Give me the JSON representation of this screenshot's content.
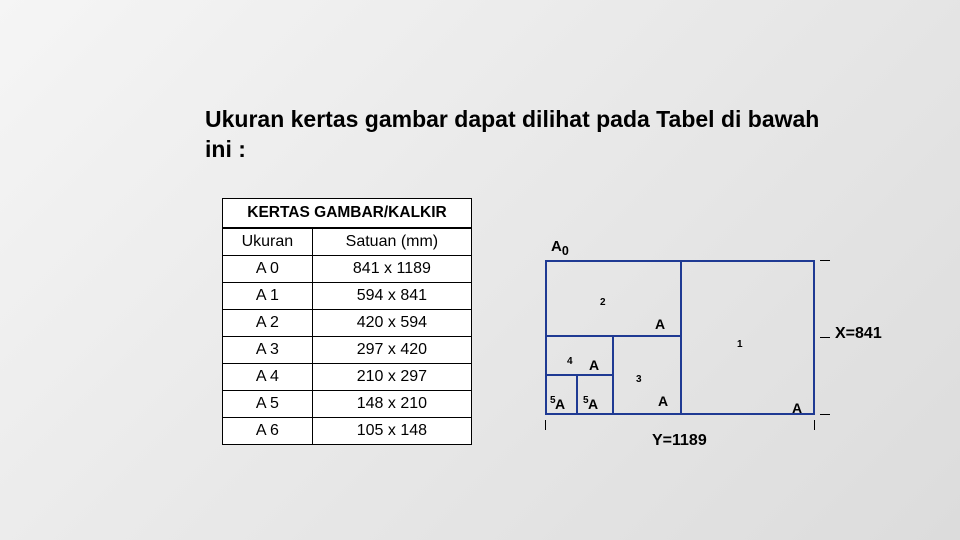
{
  "title": "Ukuran kertas gambar dapat dilihat pada Tabel di bawah ini :",
  "table": {
    "header": "KERTAS GAMBAR/KALKIR",
    "col1": "Ukuran",
    "col2": "Satuan  (mm)",
    "rows": [
      {
        "size": "A 0",
        "dim": "841 x 1189"
      },
      {
        "size": "A 1",
        "dim": "594 x 841"
      },
      {
        "size": "A 2",
        "dim": "420 x 594"
      },
      {
        "size": "A 3",
        "dim": "297 x 420"
      },
      {
        "size": "A 4",
        "dim": "210 x 297"
      },
      {
        "size": "A 5",
        "dim": "148 x 210"
      },
      {
        "size": "A 6",
        "dim": "105 x 148"
      }
    ]
  },
  "diagram": {
    "title_main": "A",
    "title_sub": "0",
    "a1_main": "A",
    "a1_sub": "1",
    "a2_main": "A",
    "a2_sub": "2",
    "a3_main": "A",
    "a3_sub": "3",
    "a4_main": "A",
    "a4_sub": "4",
    "a5a_main": "A",
    "a5a_sub": "5",
    "a5b_main": "A",
    "a5b_sub": "5",
    "x_label": "X=841",
    "y_label": "Y=1189",
    "line_color": "#1f3a93"
  }
}
